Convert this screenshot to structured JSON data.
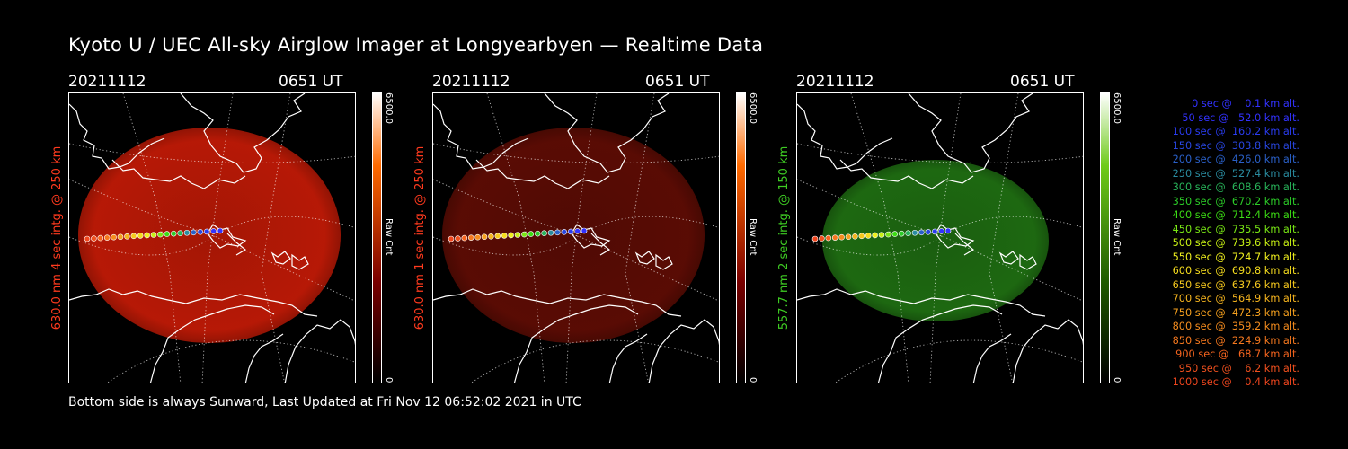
{
  "header": {
    "title": "Kyoto U / UEC All-sky Airglow Imager at Longyearbyen — Realtime Data"
  },
  "panels": [
    {
      "date": "20211112",
      "time": "0651 UT",
      "ylabel": "630.0 nm 4 sec intg. @ 250 km",
      "label_color": "#ff3a1e",
      "image_tint": "#c01a06",
      "colorbar": {
        "max_label": "6500.0",
        "min_label": "0",
        "unit": "Raw Cnt",
        "top_color": "#ffffff",
        "mid_color": "#ff6a00",
        "low_color": "#7a0000",
        "bottom_color": "#000000"
      }
    },
    {
      "date": "20211112",
      "time": "0651 UT",
      "ylabel": "630.0 nm 1 sec intg. @ 250 km",
      "label_color": "#ff3a1e",
      "image_tint": "#5e0c04",
      "colorbar": {
        "max_label": "6500.0",
        "min_label": "0",
        "unit": "Raw Cnt",
        "top_color": "#ffffff",
        "mid_color": "#ff6a00",
        "low_color": "#7a0000",
        "bottom_color": "#000000"
      }
    },
    {
      "date": "20211112",
      "time": "0651 UT",
      "ylabel": "557.7 nm 2 sec intg. @ 150 km",
      "label_color": "#3ecb23",
      "image_tint": "#1f6e12",
      "colorbar": {
        "max_label": "6500.0",
        "min_label": "0",
        "unit": "Raw Cnt",
        "top_color": "#ffffff",
        "mid_color": "#6fcb1a",
        "low_color": "#1f5a00",
        "bottom_color": "#000000"
      }
    }
  ],
  "trajectory_legend": [
    {
      "text": "   0 sec @    0.1 km alt.",
      "color": "#3232ff"
    },
    {
      "text": "  50 sec @   52.0 km alt.",
      "color": "#3232ff"
    },
    {
      "text": " 100 sec @  160.2 km alt.",
      "color": "#2a3cf0"
    },
    {
      "text": " 150 sec @  303.8 km alt.",
      "color": "#2846e0"
    },
    {
      "text": " 200 sec @  426.0 km alt.",
      "color": "#2a60c8"
    },
    {
      "text": " 250 sec @  527.4 km alt.",
      "color": "#2a8ca0"
    },
    {
      "text": " 300 sec @  608.6 km alt.",
      "color": "#28b45a"
    },
    {
      "text": " 350 sec @  670.2 km alt.",
      "color": "#2ccc28"
    },
    {
      "text": " 400 sec @  712.4 km alt.",
      "color": "#3cdc14"
    },
    {
      "text": " 450 sec @  735.5 km alt.",
      "color": "#78e614"
    },
    {
      "text": " 500 sec @  739.6 km alt.",
      "color": "#c8f014"
    },
    {
      "text": " 550 sec @  724.7 km alt.",
      "color": "#f0f01e"
    },
    {
      "text": " 600 sec @  690.8 km alt.",
      "color": "#f5dc1e"
    },
    {
      "text": " 650 sec @  637.6 km alt.",
      "color": "#f5c81e"
    },
    {
      "text": " 700 sec @  564.9 km alt.",
      "color": "#f5b41e"
    },
    {
      "text": " 750 sec @  472.3 km alt.",
      "color": "#f5a01e"
    },
    {
      "text": " 800 sec @  359.2 km alt.",
      "color": "#f58c1e"
    },
    {
      "text": " 850 sec @  224.9 km alt.",
      "color": "#f5781e"
    },
    {
      "text": " 900 sec @   68.7 km alt.",
      "color": "#f5641e"
    },
    {
      "text": " 950 sec @    6.2 km alt.",
      "color": "#f0501e"
    },
    {
      "text": "1000 sec @    0.4 km alt.",
      "color": "#f0461e"
    }
  ],
  "footer": {
    "text": "Bottom side is always Sunward, Last Updated at Fri Nov 12 06:52:02 2021 in UTC"
  }
}
